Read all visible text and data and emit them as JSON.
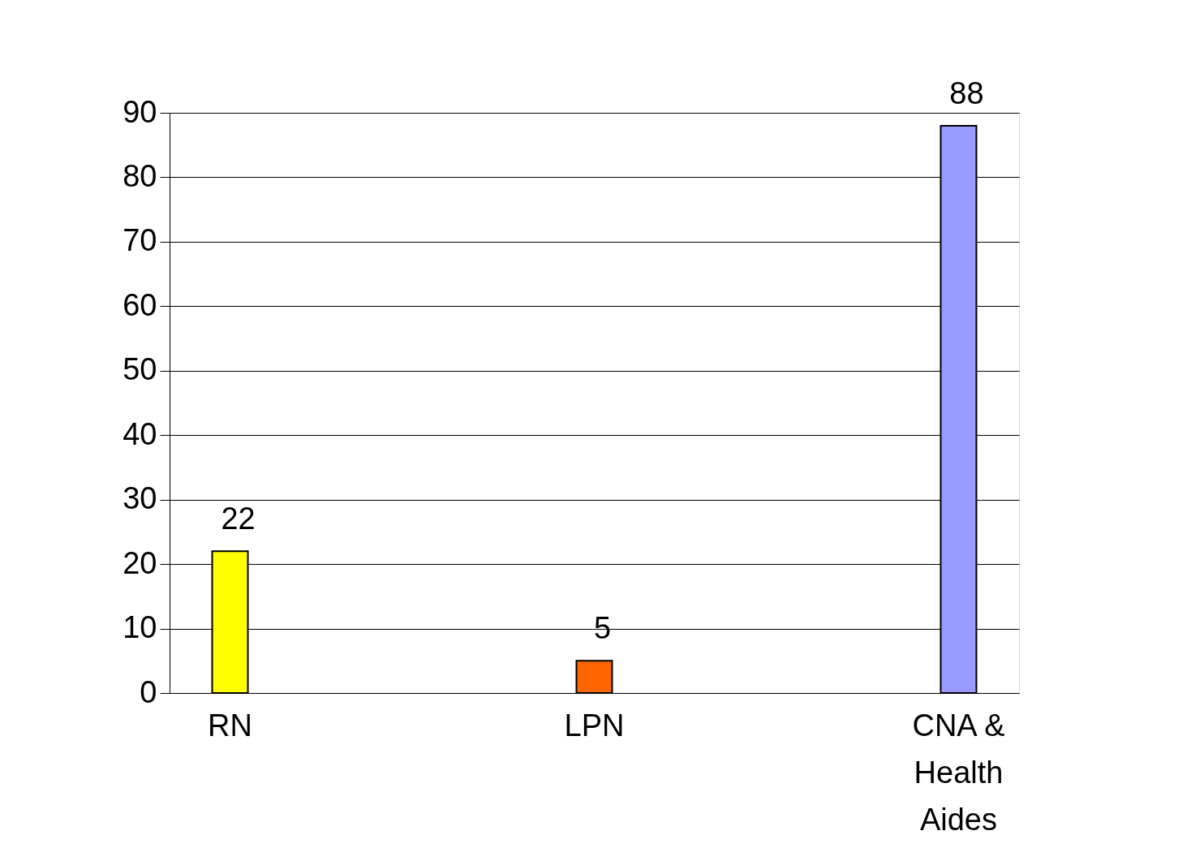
{
  "chart_data": {
    "type": "bar",
    "categories": [
      "RN",
      "LPN",
      "CNA &\nHealth\nAides"
    ],
    "values": [
      22,
      5,
      88
    ],
    "colors": [
      "#ffff00",
      "#ff6600",
      "#9999ff"
    ],
    "ylim": [
      0,
      90
    ],
    "yticks": [
      0,
      10,
      20,
      30,
      40,
      50,
      60,
      70,
      80,
      90
    ],
    "grid": "y",
    "data_labels": true
  }
}
